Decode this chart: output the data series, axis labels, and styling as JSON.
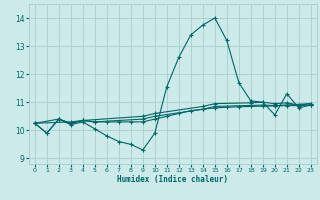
{
  "title": "",
  "xlabel": "Humidex (Indice chaleur)",
  "bg_color": "#cceaea",
  "grid_color": "#aacccc",
  "line_color": "#006666",
  "xlim": [
    -0.5,
    23.5
  ],
  "ylim": [
    8.8,
    14.5
  ],
  "yticks": [
    9,
    10,
    11,
    12,
    13,
    14
  ],
  "xticks": [
    0,
    1,
    2,
    3,
    4,
    5,
    6,
    7,
    8,
    9,
    10,
    11,
    12,
    13,
    14,
    15,
    16,
    17,
    18,
    19,
    20,
    21,
    22,
    23
  ],
  "series1": [
    [
      0,
      10.25
    ],
    [
      1,
      9.9
    ],
    [
      2,
      10.4
    ],
    [
      3,
      10.2
    ],
    [
      4,
      10.3
    ],
    [
      5,
      10.05
    ],
    [
      6,
      9.8
    ],
    [
      7,
      9.6
    ],
    [
      8,
      9.5
    ],
    [
      9,
      9.3
    ],
    [
      10,
      9.9
    ],
    [
      11,
      11.55
    ],
    [
      12,
      12.6
    ],
    [
      13,
      13.4
    ],
    [
      14,
      13.75
    ],
    [
      15,
      14.0
    ],
    [
      16,
      13.2
    ],
    [
      17,
      11.7
    ],
    [
      18,
      11.05
    ],
    [
      19,
      11.0
    ],
    [
      20,
      10.55
    ],
    [
      21,
      11.3
    ],
    [
      22,
      10.8
    ],
    [
      23,
      10.9
    ]
  ],
  "series2": [
    [
      0,
      10.25
    ],
    [
      1,
      9.9
    ],
    [
      2,
      10.4
    ],
    [
      3,
      10.25
    ],
    [
      4,
      10.35
    ],
    [
      5,
      10.3
    ],
    [
      6,
      10.3
    ],
    [
      7,
      10.3
    ],
    [
      8,
      10.3
    ],
    [
      9,
      10.3
    ],
    [
      10,
      10.4
    ],
    [
      11,
      10.5
    ],
    [
      12,
      10.6
    ],
    [
      13,
      10.7
    ],
    [
      14,
      10.75
    ],
    [
      15,
      10.8
    ],
    [
      16,
      10.82
    ],
    [
      17,
      10.84
    ],
    [
      18,
      10.85
    ],
    [
      19,
      10.86
    ],
    [
      20,
      10.87
    ],
    [
      21,
      10.88
    ],
    [
      22,
      10.88
    ],
    [
      23,
      10.9
    ]
  ],
  "series3": [
    [
      0,
      10.25
    ],
    [
      2,
      10.4
    ],
    [
      3,
      10.25
    ],
    [
      4,
      10.35
    ],
    [
      5,
      10.3
    ],
    [
      9,
      10.4
    ],
    [
      10,
      10.5
    ],
    [
      14,
      10.75
    ],
    [
      15,
      10.85
    ],
    [
      19,
      10.9
    ],
    [
      20,
      10.88
    ],
    [
      23,
      10.95
    ]
  ],
  "series4": [
    [
      0,
      10.25
    ],
    [
      3,
      10.3
    ],
    [
      4,
      10.35
    ],
    [
      9,
      10.5
    ],
    [
      10,
      10.6
    ],
    [
      14,
      10.85
    ],
    [
      15,
      10.95
    ],
    [
      18,
      10.98
    ],
    [
      19,
      11.0
    ],
    [
      20,
      10.95
    ],
    [
      21,
      10.98
    ],
    [
      22,
      10.9
    ],
    [
      23,
      10.95
    ]
  ]
}
